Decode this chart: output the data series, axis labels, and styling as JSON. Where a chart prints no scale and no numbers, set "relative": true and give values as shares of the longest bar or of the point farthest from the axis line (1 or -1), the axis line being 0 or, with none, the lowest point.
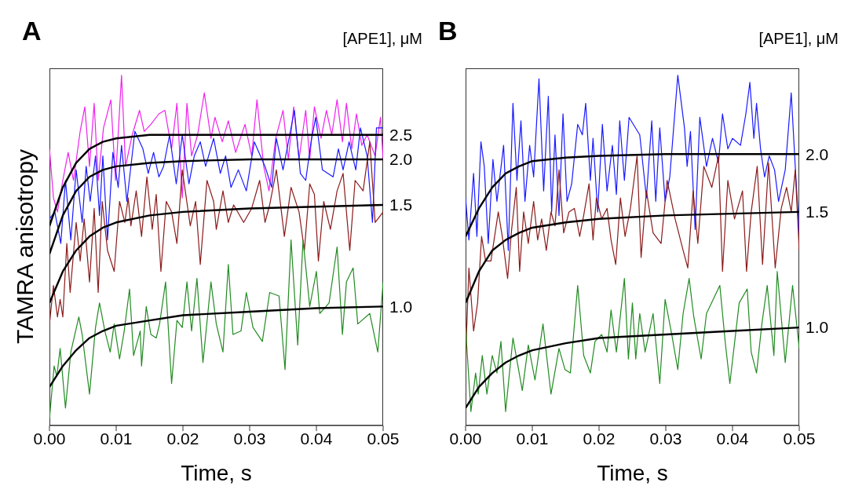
{
  "chart_data": [
    {
      "type": "line",
      "title": "A",
      "xlabel": "Time, s",
      "ylabel": "TAMRA anisotropy",
      "legend_title": "[APE1], μM",
      "relative": true,
      "marker": "none",
      "xlim": [
        0,
        0.05
      ],
      "xticks": [
        {
          "value": 0,
          "label": "0.00"
        },
        {
          "value": 0.01,
          "label": "0.01"
        },
        {
          "value": 0.02,
          "label": "0.02"
        },
        {
          "value": 0.03,
          "label": "0.03"
        },
        {
          "value": 0.04,
          "label": "0.04"
        },
        {
          "value": 0.05,
          "label": "0.05"
        }
      ],
      "series": [
        {
          "color": "#ee22ee",
          "x": [
            0,
            0.0006,
            0.0012,
            0.002,
            0.0028,
            0.0036,
            0.0046,
            0.0053,
            0.006,
            0.0067,
            0.0073,
            0.0081,
            0.0092,
            0.0099,
            0.0108,
            0.0114,
            0.0124,
            0.0135,
            0.0142,
            0.0152,
            0.0164,
            0.0173,
            0.0183,
            0.0191,
            0.0199,
            0.0206,
            0.0213,
            0.0222,
            0.0232,
            0.0242,
            0.0248,
            0.0259,
            0.0268,
            0.0279,
            0.0293,
            0.0303,
            0.0311,
            0.0321,
            0.0329,
            0.0339,
            0.035,
            0.0358,
            0.0366,
            0.0374,
            0.0384,
            0.039,
            0.0397,
            0.0407,
            0.0415,
            0.0423,
            0.0431,
            0.0439,
            0.0445,
            0.0453,
            0.046,
            0.0468,
            0.0476,
            0.0488,
            0.0496,
            0.05
          ],
          "values": [
            0.79,
            0.65,
            0.61,
            0.7,
            0.78,
            0.7,
            0.84,
            0.91,
            0.74,
            0.92,
            0.7,
            0.85,
            0.93,
            0.7,
            1.0,
            0.74,
            0.83,
            0.9,
            0.84,
            0.86,
            0.89,
            0.9,
            0.79,
            0.92,
            0.65,
            0.92,
            0.77,
            0.83,
            0.95,
            0.82,
            0.88,
            0.81,
            0.87,
            0.78,
            0.86,
            0.77,
            0.93,
            0.74,
            0.67,
            0.82,
            0.9,
            0.76,
            0.91,
            0.76,
            0.9,
            0.76,
            0.91,
            0.82,
            0.9,
            0.83,
            0.93,
            0.81,
            0.92,
            0.79,
            0.89,
            0.8,
            0.83,
            0.77,
            0.88,
            0.76
          ]
        },
        {
          "color": "#1a1aff",
          "x": [
            0,
            0.0008,
            0.0017,
            0.0024,
            0.0032,
            0.004,
            0.0049,
            0.0055,
            0.0061,
            0.0069,
            0.0075,
            0.008,
            0.0087,
            0.0095,
            0.0103,
            0.0108,
            0.0116,
            0.0128,
            0.014,
            0.0148,
            0.0156,
            0.0164,
            0.0171,
            0.018,
            0.019,
            0.0199,
            0.0209,
            0.0217,
            0.0226,
            0.0234,
            0.0246,
            0.0256,
            0.0264,
            0.0272,
            0.0283,
            0.0295,
            0.0307,
            0.0323,
            0.0333,
            0.034,
            0.035,
            0.036,
            0.0367,
            0.0376,
            0.0384,
            0.0392,
            0.0399,
            0.0409,
            0.0425,
            0.0433,
            0.044,
            0.0449,
            0.0459,
            0.0466,
            0.0476,
            0.0484,
            0.049,
            0.05
          ],
          "values": [
            0.59,
            0.61,
            0.52,
            0.7,
            0.53,
            0.73,
            0.58,
            0.74,
            0.64,
            0.77,
            0.6,
            0.77,
            0.53,
            0.78,
            0.68,
            0.8,
            0.64,
            0.84,
            0.79,
            0.72,
            0.78,
            0.71,
            0.74,
            0.83,
            0.69,
            0.83,
            0.69,
            0.77,
            0.81,
            0.74,
            0.82,
            0.72,
            0.77,
            0.68,
            0.73,
            0.67,
            0.81,
            0.74,
            0.68,
            0.82,
            0.73,
            0.83,
            0.9,
            0.72,
            0.7,
            0.81,
            0.88,
            0.73,
            0.71,
            0.79,
            0.73,
            0.81,
            0.73,
            0.85,
            0.77,
            0.58,
            0.85,
            0.85
          ]
        },
        {
          "color": "#8b1a1a",
          "x": [
            0,
            0.0006,
            0.0012,
            0.0016,
            0.002,
            0.0026,
            0.0031,
            0.004,
            0.0046,
            0.0052,
            0.006,
            0.0067,
            0.0073,
            0.0079,
            0.0087,
            0.0097,
            0.0105,
            0.0113,
            0.0118,
            0.0122,
            0.013,
            0.0138,
            0.0146,
            0.0154,
            0.016,
            0.0167,
            0.0175,
            0.0183,
            0.0191,
            0.0199,
            0.0211,
            0.0219,
            0.0226,
            0.0236,
            0.0246,
            0.025,
            0.026,
            0.0268,
            0.0276,
            0.0291,
            0.0303,
            0.0315,
            0.0323,
            0.033,
            0.034,
            0.0352,
            0.0362,
            0.0374,
            0.0382,
            0.039,
            0.0397,
            0.0403,
            0.0411,
            0.0421,
            0.0431,
            0.044,
            0.045,
            0.0458,
            0.047,
            0.048,
            0.0488,
            0.05
          ],
          "values": [
            0.29,
            0.4,
            0.31,
            0.36,
            0.31,
            0.52,
            0.38,
            0.58,
            0.47,
            0.59,
            0.41,
            0.62,
            0.38,
            0.64,
            0.5,
            0.44,
            0.64,
            0.58,
            0.65,
            0.57,
            0.67,
            0.54,
            0.71,
            0.56,
            0.66,
            0.44,
            0.64,
            0.61,
            0.52,
            0.73,
            0.57,
            0.64,
            0.46,
            0.7,
            0.64,
            0.56,
            0.67,
            0.58,
            0.63,
            0.58,
            0.62,
            0.7,
            0.58,
            0.63,
            0.73,
            0.54,
            0.68,
            0.61,
            0.5,
            0.69,
            0.66,
            0.47,
            0.64,
            0.56,
            0.67,
            0.72,
            0.5,
            0.7,
            0.67,
            0.81,
            0.58,
            0.61
          ]
        },
        {
          "color": "#228b22",
          "x": [
            0,
            0.0007,
            0.0011,
            0.0016,
            0.0024,
            0.0032,
            0.0044,
            0.0049,
            0.006,
            0.0069,
            0.0075,
            0.0083,
            0.0091,
            0.0097,
            0.0105,
            0.0112,
            0.012,
            0.0126,
            0.0136,
            0.0138,
            0.0145,
            0.0152,
            0.016,
            0.0165,
            0.0174,
            0.0183,
            0.0191,
            0.0199,
            0.0206,
            0.0213,
            0.0221,
            0.023,
            0.0242,
            0.025,
            0.026,
            0.0268,
            0.0275,
            0.0287,
            0.0295,
            0.0305,
            0.0319,
            0.033,
            0.0344,
            0.0353,
            0.0362,
            0.0372,
            0.038,
            0.039,
            0.04,
            0.0405,
            0.0419,
            0.0431,
            0.0439,
            0.0445,
            0.0455,
            0.0462,
            0.048,
            0.0492,
            0.05
          ],
          "values": [
            0.02,
            0.17,
            0.14,
            0.22,
            0.05,
            0.21,
            0.31,
            0.26,
            0.09,
            0.28,
            0.35,
            0.27,
            0.21,
            0.29,
            0.19,
            0.27,
            0.39,
            0.2,
            0.27,
            0.17,
            0.34,
            0.26,
            0.25,
            0.29,
            0.41,
            0.12,
            0.3,
            0.28,
            0.41,
            0.27,
            0.42,
            0.18,
            0.41,
            0.29,
            0.21,
            0.46,
            0.26,
            0.27,
            0.38,
            0.28,
            0.24,
            0.38,
            0.37,
            0.16,
            0.53,
            0.23,
            0.53,
            0.34,
            0.44,
            0.32,
            0.35,
            0.51,
            0.26,
            0.41,
            0.45,
            0.29,
            0.32,
            0.21,
            0.41
          ]
        },
        {
          "name": "2.5",
          "color": "#000000",
          "x": [
            0,
            0.002,
            0.004,
            0.006,
            0.008,
            0.01,
            0.015,
            0.02,
            0.03,
            0.04,
            0.05
          ],
          "values": [
            0.57,
            0.68,
            0.75,
            0.79,
            0.81,
            0.82,
            0.83,
            0.83,
            0.83,
            0.83,
            0.83
          ]
        },
        {
          "name": "2.0",
          "color": "#000000",
          "x": [
            0,
            0.002,
            0.004,
            0.006,
            0.008,
            0.01,
            0.015,
            0.02,
            0.03,
            0.04,
            0.05
          ],
          "values": [
            0.49,
            0.6,
            0.67,
            0.71,
            0.73,
            0.74,
            0.75,
            0.755,
            0.76,
            0.76,
            0.76
          ]
        },
        {
          "name": "1.5",
          "color": "#000000",
          "x": [
            0,
            0.002,
            0.004,
            0.006,
            0.008,
            0.01,
            0.015,
            0.02,
            0.03,
            0.04,
            0.05
          ],
          "values": [
            0.35,
            0.44,
            0.5,
            0.54,
            0.565,
            0.58,
            0.6,
            0.61,
            0.62,
            0.625,
            0.63
          ]
        },
        {
          "name": "1.0",
          "color": "#000000",
          "x": [
            0,
            0.002,
            0.004,
            0.006,
            0.008,
            0.01,
            0.015,
            0.02,
            0.03,
            0.04,
            0.05
          ],
          "values": [
            0.11,
            0.17,
            0.215,
            0.25,
            0.27,
            0.285,
            0.3,
            0.315,
            0.325,
            0.335,
            0.34
          ]
        }
      ]
    },
    {
      "type": "line",
      "title": "B",
      "xlabel": "Time, s",
      "legend_title": "[APE1], μM",
      "relative": true,
      "marker": "none",
      "xlim": [
        0,
        0.05
      ],
      "xticks": [
        {
          "value": 0,
          "label": "0.00"
        },
        {
          "value": 0.01,
          "label": "0.01"
        },
        {
          "value": 0.02,
          "label": "0.02"
        },
        {
          "value": 0.03,
          "label": "0.03"
        },
        {
          "value": 0.04,
          "label": "0.04"
        },
        {
          "value": 0.05,
          "label": "0.05"
        }
      ],
      "series": [
        {
          "color": "#1a1aff",
          "x": [
            0,
            0.0005,
            0.0012,
            0.0017,
            0.0023,
            0.0028,
            0.0034,
            0.0041,
            0.0047,
            0.0057,
            0.0064,
            0.0071,
            0.0077,
            0.0083,
            0.0089,
            0.0096,
            0.0102,
            0.011,
            0.0117,
            0.0124,
            0.0129,
            0.0134,
            0.014,
            0.0146,
            0.0152,
            0.0159,
            0.0168,
            0.0175,
            0.018,
            0.0187,
            0.0191,
            0.0198,
            0.0205,
            0.0212,
            0.022,
            0.0226,
            0.0231,
            0.0238,
            0.0245,
            0.0261,
            0.0271,
            0.0279,
            0.0285,
            0.0291,
            0.0299,
            0.0306,
            0.0318,
            0.0328,
            0.0332,
            0.0337,
            0.0344,
            0.0351,
            0.0361,
            0.037,
            0.0379,
            0.0385,
            0.0393,
            0.04,
            0.0412,
            0.042,
            0.0426,
            0.0432,
            0.0436,
            0.0442,
            0.0448,
            0.0455,
            0.0463,
            0.0469,
            0.0479,
            0.0488,
            0.0494,
            0.05
          ],
          "values": [
            0.65,
            0.53,
            0.72,
            0.54,
            0.81,
            0.74,
            0.52,
            0.76,
            0.64,
            0.8,
            0.5,
            0.92,
            0.7,
            0.87,
            0.64,
            0.8,
            0.71,
            0.99,
            0.67,
            0.94,
            0.61,
            0.83,
            0.6,
            0.89,
            0.64,
            0.69,
            0.86,
            0.83,
            0.92,
            0.7,
            0.82,
            0.61,
            0.86,
            0.67,
            0.8,
            0.66,
            0.87,
            0.7,
            0.88,
            0.83,
            0.65,
            0.87,
            0.64,
            0.85,
            0.64,
            0.71,
            1.0,
            0.85,
            0.74,
            0.84,
            0.56,
            0.88,
            0.74,
            0.82,
            0.75,
            0.89,
            0.79,
            0.82,
            0.8,
            0.89,
            0.98,
            0.82,
            0.92,
            0.79,
            0.71,
            0.77,
            0.73,
            0.64,
            0.73,
            0.95,
            0.74,
            0.55
          ]
        },
        {
          "color": "#8b1a1a",
          "x": [
            0,
            0.0005,
            0.0012,
            0.0018,
            0.0024,
            0.003,
            0.0038,
            0.0049,
            0.0055,
            0.0063,
            0.0069,
            0.0076,
            0.0081,
            0.0087,
            0.0094,
            0.0102,
            0.0108,
            0.0114,
            0.0121,
            0.0128,
            0.0134,
            0.014,
            0.0147,
            0.0155,
            0.0163,
            0.0171,
            0.0177,
            0.0185,
            0.0191,
            0.0196,
            0.0204,
            0.0212,
            0.0218,
            0.0225,
            0.0232,
            0.0239,
            0.0247,
            0.0257,
            0.0263,
            0.0271,
            0.0281,
            0.0293,
            0.0302,
            0.0314,
            0.0326,
            0.0333,
            0.0341,
            0.0348,
            0.0357,
            0.0369,
            0.0379,
            0.0385,
            0.0393,
            0.0403,
            0.0415,
            0.0421,
            0.0428,
            0.0437,
            0.0445,
            0.0454,
            0.0464,
            0.0473,
            0.0481,
            0.0488,
            0.0494,
            0.05
          ],
          "values": [
            0.19,
            0.45,
            0.27,
            0.35,
            0.54,
            0.47,
            0.47,
            0.61,
            0.54,
            0.42,
            0.56,
            0.68,
            0.44,
            0.61,
            0.52,
            0.64,
            0.53,
            0.59,
            0.5,
            0.61,
            0.57,
            0.73,
            0.55,
            0.61,
            0.62,
            0.54,
            0.6,
            0.69,
            0.53,
            0.65,
            0.59,
            0.62,
            0.53,
            0.46,
            0.65,
            0.54,
            0.62,
            0.77,
            0.48,
            0.67,
            0.55,
            0.52,
            0.7,
            0.59,
            0.5,
            0.45,
            0.67,
            0.52,
            0.74,
            0.68,
            0.77,
            0.44,
            0.7,
            0.59,
            0.67,
            0.44,
            0.61,
            0.74,
            0.46,
            0.75,
            0.45,
            0.62,
            0.68,
            0.61,
            0.73,
            0.5
          ]
        },
        {
          "color": "#228b22",
          "x": [
            0,
            0.0008,
            0.0015,
            0.0019,
            0.0025,
            0.0032,
            0.004,
            0.0047,
            0.0053,
            0.006,
            0.0071,
            0.0085,
            0.0094,
            0.0104,
            0.0116,
            0.0128,
            0.014,
            0.0149,
            0.0157,
            0.0168,
            0.0177,
            0.0187,
            0.0194,
            0.0204,
            0.0212,
            0.0218,
            0.0226,
            0.0238,
            0.0244,
            0.025,
            0.0255,
            0.0261,
            0.0269,
            0.0281,
            0.0291,
            0.0299,
            0.0309,
            0.0318,
            0.0326,
            0.0335,
            0.0342,
            0.0353,
            0.0361,
            0.0371,
            0.0381,
            0.0389,
            0.0396,
            0.041,
            0.0422,
            0.0428,
            0.0436,
            0.0444,
            0.0452,
            0.0462,
            0.0467,
            0.0479,
            0.049,
            0.05
          ],
          "values": [
            0.28,
            0.04,
            0.15,
            0.09,
            0.2,
            0.09,
            0.2,
            0.15,
            0.24,
            0.04,
            0.25,
            0.1,
            0.23,
            0.13,
            0.29,
            0.09,
            0.22,
            0.16,
            0.15,
            0.4,
            0.2,
            0.15,
            0.24,
            0.26,
            0.21,
            0.33,
            0.21,
            0.42,
            0.19,
            0.35,
            0.19,
            0.32,
            0.21,
            0.32,
            0.12,
            0.36,
            0.26,
            0.16,
            0.32,
            0.42,
            0.31,
            0.19,
            0.32,
            0.36,
            0.4,
            0.24,
            0.12,
            0.35,
            0.39,
            0.21,
            0.15,
            0.29,
            0.4,
            0.2,
            0.44,
            0.18,
            0.4,
            0.22
          ]
        },
        {
          "name": "2.0",
          "color": "#000000",
          "x": [
            0,
            0.002,
            0.004,
            0.006,
            0.008,
            0.01,
            0.015,
            0.02,
            0.03,
            0.04,
            0.05
          ],
          "values": [
            0.54,
            0.62,
            0.68,
            0.72,
            0.74,
            0.755,
            0.765,
            0.77,
            0.775,
            0.775,
            0.775
          ]
        },
        {
          "name": "1.5",
          "color": "#000000",
          "x": [
            0,
            0.002,
            0.004,
            0.006,
            0.008,
            0.01,
            0.015,
            0.02,
            0.03,
            0.04,
            0.05
          ],
          "values": [
            0.35,
            0.44,
            0.5,
            0.53,
            0.55,
            0.565,
            0.58,
            0.59,
            0.6,
            0.605,
            0.61
          ]
        },
        {
          "name": "1.0",
          "color": "#000000",
          "x": [
            0,
            0.002,
            0.004,
            0.006,
            0.008,
            0.01,
            0.015,
            0.02,
            0.03,
            0.04,
            0.05
          ],
          "values": [
            0.05,
            0.11,
            0.15,
            0.18,
            0.2,
            0.215,
            0.235,
            0.25,
            0.26,
            0.27,
            0.28
          ]
        }
      ]
    }
  ]
}
